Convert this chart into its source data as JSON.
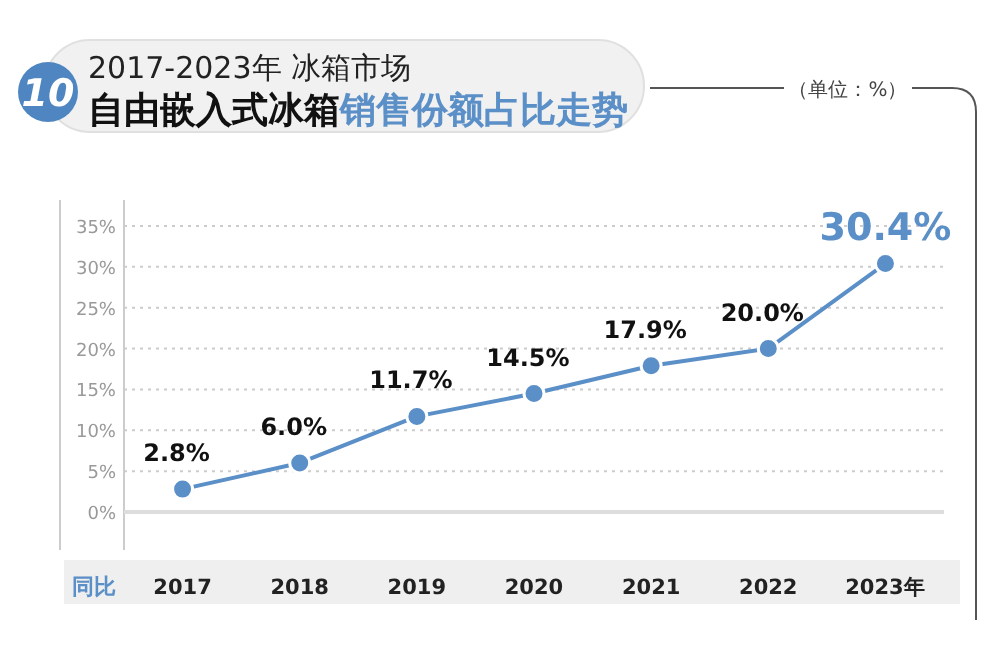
{
  "chart_data": {
    "type": "line",
    "title": "2017-2023年 冰箱市场",
    "subtitle": "自由嵌入式冰箱销售份额占比走势",
    "xlabel": "同比",
    "annotations": [
      "10",
      "（单位：%）"
    ],
    "categories": [
      "2017",
      "2018",
      "2019",
      "2020",
      "2021",
      "2022",
      "2023年"
    ],
    "series": [
      {
        "color": "#5b8fc7",
        "values": [
          2.8,
          6.0,
          11.7,
          14.5,
          17.9,
          20.0,
          30.4
        ],
        "value_labels": [
          "2.8%",
          "6.0%",
          "11.7%",
          "14.5%",
          "17.9%",
          "20.0%",
          "30.4%"
        ]
      }
    ],
    "ylim": [
      0,
      35
    ],
    "yticks": [
      {
        "value": 0,
        "label": "0%"
      },
      {
        "value": 5,
        "label": "5%"
      },
      {
        "value": 10,
        "label": "10%"
      },
      {
        "value": 15,
        "label": "15%"
      },
      {
        "value": 20,
        "label": "20%"
      },
      {
        "value": 25,
        "label": "25%"
      },
      {
        "value": 30,
        "label": "30%"
      },
      {
        "value": 35,
        "label": "35%"
      }
    ],
    "grid": "y",
    "marker": "circle",
    "line_style": "solid"
  }
}
